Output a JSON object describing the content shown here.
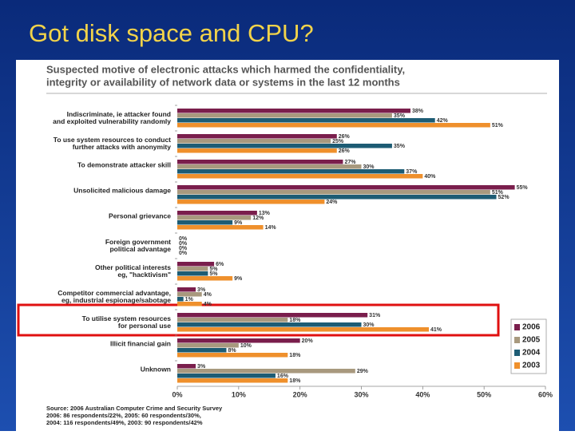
{
  "slide_title": "Got disk space and CPU?",
  "chart_data": {
    "type": "bar",
    "orientation": "horizontal",
    "title": [
      "Suspected motive of electronic attacks which harmed the confidentiality,",
      "integrity or availability of network data or systems in the last 12 months"
    ],
    "categories": [
      [
        "Indiscriminate, ie attacker found",
        "and exploited vulnerability randomly"
      ],
      [
        "To use system resources to conduct",
        "further attacks with anonymity"
      ],
      [
        "To demonstrate attacker skill"
      ],
      [
        "Unsolicited malicious damage"
      ],
      [
        "Personal grievance"
      ],
      [
        "Foreign government",
        "political advantage"
      ],
      [
        "Other political interests",
        "eg, \"hacktivism\""
      ],
      [
        "Competitor commercial advantage,",
        "eg, industrial espionage/sabotage"
      ],
      [
        "To utilise system resources",
        "for personal use"
      ],
      [
        "Illicit financial gain"
      ],
      [
        "Unknown"
      ]
    ],
    "series": [
      {
        "name": "2006",
        "color": "#7a1e4c",
        "values": [
          38,
          26,
          27,
          55,
          13,
          0,
          6,
          3,
          31,
          20,
          3
        ],
        "value_labels": [
          "38%",
          "26%",
          "27%",
          "55%",
          "13%",
          "0%",
          "6%",
          "3%",
          "31%",
          "20%",
          "3%"
        ]
      },
      {
        "name": "2005",
        "color": "#a8997e",
        "values": [
          35,
          25,
          30,
          51,
          12,
          0,
          5,
          4,
          18,
          10,
          29
        ],
        "value_labels": [
          "35%",
          "25%",
          "30%",
          "51%",
          "12%",
          "0%",
          "5%",
          "4%",
          "18%",
          "10%",
          "29%"
        ]
      },
      {
        "name": "2004",
        "color": "#1d5c74",
        "values": [
          42,
          35,
          37,
          52,
          9,
          0,
          5,
          1,
          30,
          8,
          16
        ],
        "value_labels": [
          "42%",
          "35%",
          "37%",
          "52%",
          "9%",
          "0%",
          "5%",
          "1%",
          "30%",
          "8%",
          "16%"
        ]
      },
      {
        "name": "2003",
        "color": "#ef902c",
        "values": [
          51,
          26,
          40,
          24,
          14,
          0,
          9,
          4,
          41,
          18,
          18
        ],
        "value_labels": [
          "51%",
          "26%",
          "40%",
          "24%",
          "14%",
          "0%",
          "9%",
          "4%",
          "41%",
          "18%",
          "18%"
        ]
      }
    ],
    "xlim": [
      0,
      60
    ],
    "xticks": [
      {
        "value": 0,
        "label": "0%"
      },
      {
        "value": 10,
        "label": "10%"
      },
      {
        "value": 20,
        "label": "20%"
      },
      {
        "value": 30,
        "label": "30%"
      },
      {
        "value": 40,
        "label": "40%"
      },
      {
        "value": 50,
        "label": "50%"
      },
      {
        "value": 60,
        "label": "60%"
      }
    ],
    "grid": false,
    "legend": "lower right",
    "source": [
      "Source:  2006 Australian Computer Crime and Security Survey",
      "2006: 86 respondents/22%, 2005: 60 respondents/30%,",
      "2004: 116 respondents/49%, 2003: 90 respondents/42%"
    ]
  }
}
